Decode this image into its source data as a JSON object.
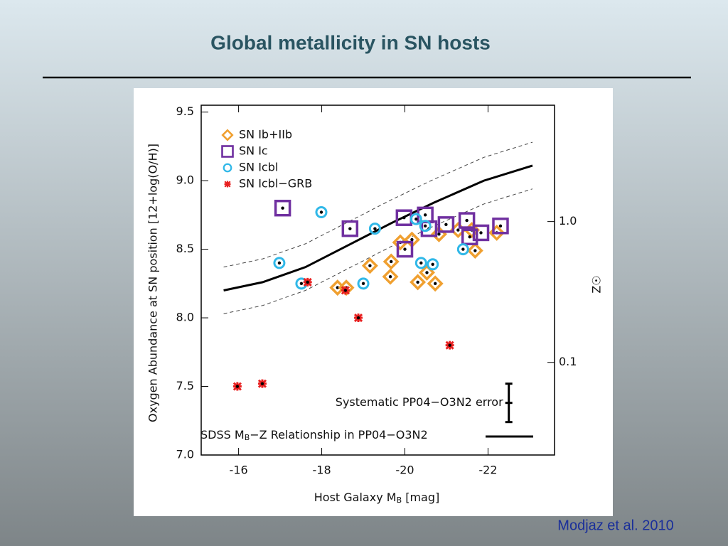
{
  "slide": {
    "title": "Global metallicity in SN hosts",
    "citation": "Modjaz et al. 2010"
  },
  "chart_data": {
    "type": "scatter",
    "xlabel": {
      "pre": "Host Galaxy M",
      "sub": "B",
      "post": " [mag]"
    },
    "ylabel": "Oxygen Abundance at SN position [12+log(O/H)]",
    "y2label": "Z☉",
    "xlim": [
      -15.1,
      -23.6
    ],
    "xticks": [
      -16,
      -18,
      -20,
      -22
    ],
    "ylim": [
      7.0,
      9.55
    ],
    "yticks": [
      {
        "value": 7.0,
        "label": "7.0"
      },
      7.5,
      {
        "value": 8.0,
        "label": "8.0"
      },
      8.5,
      {
        "value": 9.0,
        "label": "9.0"
      },
      9.5
    ],
    "y2lim": [
      0.022,
      6.7
    ],
    "y2log": true,
    "y2ticks": [
      {
        "value": 1,
        "label": "1.0"
      },
      0.1
    ],
    "series": [
      {
        "name": "SN Ib+IIb",
        "color": "#f0a030",
        "marker": "diamond",
        "x": [
          -18.38,
          -18.59,
          -19.16,
          -19.65,
          -19.67,
          -19.89,
          -20.17,
          -20.31,
          -20.53,
          -20.73,
          -20.82,
          -21.28,
          -21.69,
          -22.21,
          -21.61
        ],
        "values": [
          8.22,
          8.22,
          8.38,
          8.3,
          8.41,
          8.55,
          8.57,
          8.26,
          8.33,
          8.25,
          8.61,
          8.64,
          8.49,
          8.62,
          8.64
        ]
      },
      {
        "name": "SN Ic",
        "color": "#7030a0",
        "marker": "square",
        "x": [
          -17.06,
          -18.68,
          -19.98,
          -20.0,
          -20.49,
          -20.58,
          -20.99,
          -21.49,
          -21.56,
          -21.83,
          -22.3
        ],
        "values": [
          8.8,
          8.65,
          8.73,
          8.5,
          8.75,
          8.65,
          8.68,
          8.71,
          8.59,
          8.62,
          8.67
        ]
      },
      {
        "name": "SN Icbl",
        "color": "#30b8e8",
        "marker": "circle",
        "x": [
          -16.98,
          -17.51,
          -17.99,
          -19.0,
          -19.28,
          -20.27,
          -20.39,
          -20.67,
          -20.49,
          -21.4
        ],
        "values": [
          8.4,
          8.25,
          8.77,
          8.25,
          8.65,
          8.72,
          8.4,
          8.39,
          8.67,
          8.5
        ]
      },
      {
        "name": "SN Icbl−GRB",
        "color": "#e82020",
        "marker": "asterisk",
        "x": [
          -15.97,
          -16.57,
          -17.66,
          -18.57,
          -18.88,
          -21.08
        ],
        "values": [
          7.5,
          7.52,
          8.26,
          8.2,
          8.0,
          7.8
        ]
      }
    ],
    "relationship": {
      "name": {
        "pre": "SDSS M",
        "sub": "B",
        "post": "−Z Relationship in PP04−O3N2"
      },
      "x": [
        -15.64,
        -16.58,
        -17.61,
        -18.64,
        -19.67,
        -20.7,
        -21.9,
        -23.07
      ],
      "values": [
        8.2,
        8.26,
        8.37,
        8.53,
        8.69,
        8.84,
        9.0,
        9.11
      ],
      "upper": [
        8.37,
        8.43,
        8.54,
        8.7,
        8.86,
        9.01,
        9.17,
        9.28
      ],
      "lower": [
        8.03,
        8.09,
        8.2,
        8.36,
        8.52,
        8.67,
        8.83,
        8.94
      ]
    },
    "systematic": {
      "label": "Systematic PP04−O3N2 error",
      "x": -22.5,
      "value": 7.38,
      "error": 0.14
    }
  }
}
